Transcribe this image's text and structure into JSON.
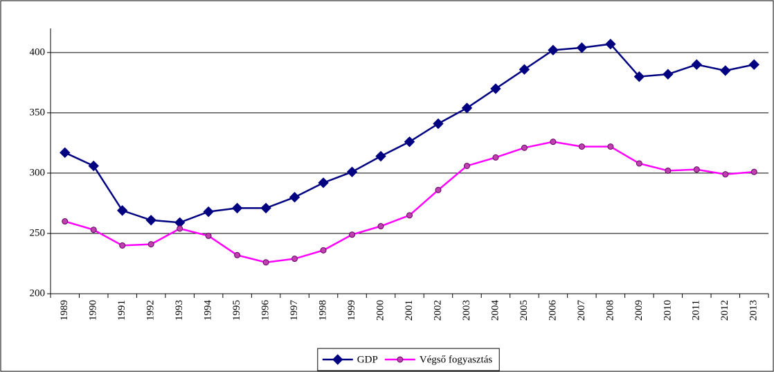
{
  "chart_data": {
    "type": "line",
    "categories": [
      "1989",
      "1990",
      "1991",
      "1992",
      "1993",
      "1994",
      "1995",
      "1996",
      "1997",
      "1998",
      "1999",
      "2000",
      "2001",
      "2002",
      "2003",
      "2004",
      "2005",
      "2006",
      "2007",
      "2008",
      "2009",
      "2010",
      "2011",
      "2012",
      "2013"
    ],
    "series": [
      {
        "name": "GDP",
        "color": "#000080",
        "marker": "diamond",
        "values": [
          317,
          306,
          269,
          261,
          259,
          268,
          271,
          271,
          280,
          292,
          301,
          314,
          326,
          341,
          354,
          370,
          386,
          402,
          404,
          407,
          380,
          382,
          390,
          385,
          390
        ]
      },
      {
        "name": "Végső fogyasztás",
        "color": "#ff00ff",
        "marker": "circle",
        "values": [
          260,
          253,
          240,
          241,
          254,
          248,
          232,
          226,
          229,
          236,
          249,
          256,
          265,
          286,
          306,
          313,
          321,
          326,
          322,
          322,
          308,
          302,
          303,
          299,
          301
        ]
      }
    ],
    "ylim": [
      200,
      420
    ],
    "yticks": [
      200,
      250,
      300,
      350,
      400
    ],
    "grid": true,
    "legend": "bottom"
  }
}
